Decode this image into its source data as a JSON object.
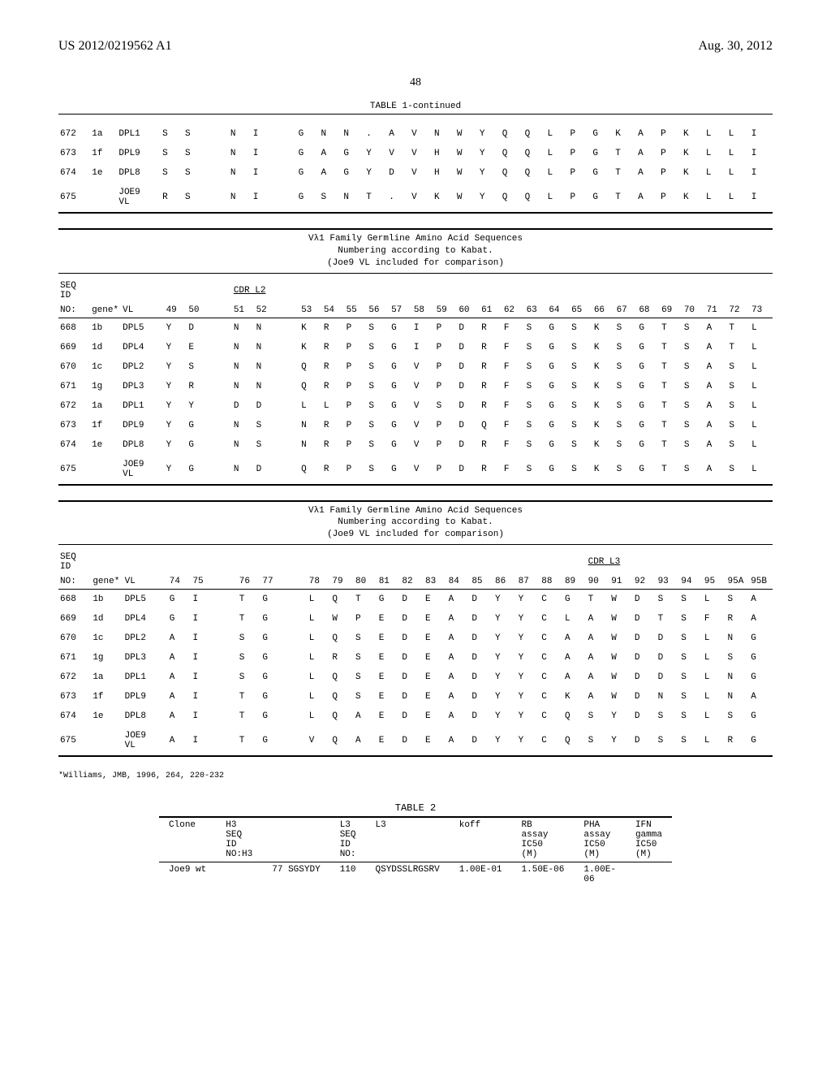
{
  "header": {
    "left": "US 2012/0219562 A1",
    "right": "Aug. 30, 2012"
  },
  "page_number": "48",
  "top_table": {
    "title": "TABLE 1-continued",
    "rows": [
      {
        "seq": "672",
        "gene": "1a",
        "vl": "DPL1",
        "aa": [
          "S",
          "S",
          "",
          "N",
          "I",
          "",
          "G",
          "N",
          "N",
          ".",
          "A",
          "V",
          "N",
          "W",
          "Y",
          "Q",
          "Q",
          "L",
          "P",
          "G",
          "K",
          "A",
          "P",
          "K",
          "L",
          "L",
          "I"
        ]
      },
      {
        "seq": "673",
        "gene": "1f",
        "vl": "DPL9",
        "aa": [
          "S",
          "S",
          "",
          "N",
          "I",
          "",
          "G",
          "A",
          "G",
          "Y",
          "V",
          "V",
          "H",
          "W",
          "Y",
          "Q",
          "Q",
          "L",
          "P",
          "G",
          "T",
          "A",
          "P",
          "K",
          "L",
          "L",
          "I"
        ]
      },
      {
        "seq": "674",
        "gene": "1e",
        "vl": "DPL8",
        "aa": [
          "S",
          "S",
          "",
          "N",
          "I",
          "",
          "G",
          "A",
          "G",
          "Y",
          "D",
          "V",
          "H",
          "W",
          "Y",
          "Q",
          "Q",
          "L",
          "P",
          "G",
          "T",
          "A",
          "P",
          "K",
          "L",
          "L",
          "I"
        ]
      },
      {
        "seq": "675",
        "gene": "",
        "vl": "JOE9 VL",
        "aa": [
          "R",
          "S",
          "",
          "N",
          "I",
          "",
          "G",
          "S",
          "N",
          "T",
          ".",
          "V",
          "K",
          "W",
          "Y",
          "Q",
          "Q",
          "L",
          "P",
          "G",
          "T",
          "A",
          "P",
          "K",
          "L",
          "L",
          "I"
        ]
      }
    ]
  },
  "mid_caption": "Vλ1 Family Germline Amino Acid Sequences\nNumbering according to Kabat.\n(Joe9 VL included for comparison)",
  "mid_table": {
    "cdr_label": "CDR L2",
    "positions": [
      "49",
      "50",
      "",
      "51",
      "52",
      "",
      "53",
      "54",
      "55",
      "56",
      "57",
      "58",
      "59",
      "60",
      "61",
      "62",
      "63",
      "64",
      "65",
      "66",
      "67",
      "68",
      "69",
      "70",
      "71",
      "72",
      "73"
    ],
    "header_left": [
      "SEQ",
      "ID",
      "",
      "NO:",
      "gene*",
      "VL"
    ],
    "rows": [
      {
        "seq": "668",
        "gene": "1b",
        "vl": "DPL5",
        "aa": [
          "Y",
          "D",
          "",
          "N",
          "N",
          "",
          "K",
          "R",
          "P",
          "S",
          "G",
          "I",
          "P",
          "D",
          "R",
          "F",
          "S",
          "G",
          "S",
          "K",
          "S",
          "G",
          "T",
          "S",
          "A",
          "T",
          "L"
        ]
      },
      {
        "seq": "669",
        "gene": "1d",
        "vl": "DPL4",
        "aa": [
          "Y",
          "E",
          "",
          "N",
          "N",
          "",
          "K",
          "R",
          "P",
          "S",
          "G",
          "I",
          "P",
          "D",
          "R",
          "F",
          "S",
          "G",
          "S",
          "K",
          "S",
          "G",
          "T",
          "S",
          "A",
          "T",
          "L"
        ]
      },
      {
        "seq": "670",
        "gene": "1c",
        "vl": "DPL2",
        "aa": [
          "Y",
          "S",
          "",
          "N",
          "N",
          "",
          "Q",
          "R",
          "P",
          "S",
          "G",
          "V",
          "P",
          "D",
          "R",
          "F",
          "S",
          "G",
          "S",
          "K",
          "S",
          "G",
          "T",
          "S",
          "A",
          "S",
          "L"
        ]
      },
      {
        "seq": "671",
        "gene": "1g",
        "vl": "DPL3",
        "aa": [
          "Y",
          "R",
          "",
          "N",
          "N",
          "",
          "Q",
          "R",
          "P",
          "S",
          "G",
          "V",
          "P",
          "D",
          "R",
          "F",
          "S",
          "G",
          "S",
          "K",
          "S",
          "G",
          "T",
          "S",
          "A",
          "S",
          "L"
        ]
      },
      {
        "seq": "672",
        "gene": "1a",
        "vl": "DPL1",
        "aa": [
          "Y",
          "Y",
          "",
          "D",
          "D",
          "",
          "L",
          "L",
          "P",
          "S",
          "G",
          "V",
          "S",
          "D",
          "R",
          "F",
          "S",
          "G",
          "S",
          "K",
          "S",
          "G",
          "T",
          "S",
          "A",
          "S",
          "L"
        ]
      },
      {
        "seq": "673",
        "gene": "1f",
        "vl": "DPL9",
        "aa": [
          "Y",
          "G",
          "",
          "N",
          "S",
          "",
          "N",
          "R",
          "P",
          "S",
          "G",
          "V",
          "P",
          "D",
          "Q",
          "F",
          "S",
          "G",
          "S",
          "K",
          "S",
          "G",
          "T",
          "S",
          "A",
          "S",
          "L"
        ]
      },
      {
        "seq": "674",
        "gene": "1e",
        "vl": "DPL8",
        "aa": [
          "Y",
          "G",
          "",
          "N",
          "S",
          "",
          "N",
          "R",
          "P",
          "S",
          "G",
          "V",
          "P",
          "D",
          "R",
          "F",
          "S",
          "G",
          "S",
          "K",
          "S",
          "G",
          "T",
          "S",
          "A",
          "S",
          "L"
        ]
      },
      {
        "seq": "675",
        "gene": "",
        "vl": "JOE9 VL",
        "aa": [
          "Y",
          "G",
          "",
          "N",
          "D",
          "",
          "Q",
          "R",
          "P",
          "S",
          "G",
          "V",
          "P",
          "D",
          "R",
          "F",
          "S",
          "G",
          "S",
          "K",
          "S",
          "G",
          "T",
          "S",
          "A",
          "S",
          "L"
        ]
      }
    ]
  },
  "bot_table": {
    "cdr_label": "CDR L3",
    "positions": [
      "74",
      "75",
      "",
      "76",
      "77",
      "",
      "78",
      "79",
      "80",
      "81",
      "82",
      "83",
      "84",
      "85",
      "86",
      "87",
      "88",
      "89",
      "90",
      "91",
      "92",
      "93",
      "94",
      "95",
      "95A",
      "95B"
    ],
    "rows": [
      {
        "seq": "668",
        "gene": "1b",
        "vl": "DPL5",
        "aa": [
          "G",
          "I",
          "",
          "T",
          "G",
          "",
          "L",
          "Q",
          "T",
          "G",
          "D",
          "E",
          "A",
          "D",
          "Y",
          "Y",
          "C",
          "G",
          "T",
          "W",
          "D",
          "S",
          "S",
          "L",
          "S",
          "A"
        ]
      },
      {
        "seq": "669",
        "gene": "1d",
        "vl": "DPL4",
        "aa": [
          "G",
          "I",
          "",
          "T",
          "G",
          "",
          "L",
          "W",
          "P",
          "E",
          "D",
          "E",
          "A",
          "D",
          "Y",
          "Y",
          "C",
          "L",
          "A",
          "W",
          "D",
          "T",
          "S",
          "F",
          "R",
          "A"
        ]
      },
      {
        "seq": "670",
        "gene": "1c",
        "vl": "DPL2",
        "aa": [
          "A",
          "I",
          "",
          "S",
          "G",
          "",
          "L",
          "Q",
          "S",
          "E",
          "D",
          "E",
          "A",
          "D",
          "Y",
          "Y",
          "C",
          "A",
          "A",
          "W",
          "D",
          "D",
          "S",
          "L",
          "N",
          "G"
        ]
      },
      {
        "seq": "671",
        "gene": "1g",
        "vl": "DPL3",
        "aa": [
          "A",
          "I",
          "",
          "S",
          "G",
          "",
          "L",
          "R",
          "S",
          "E",
          "D",
          "E",
          "A",
          "D",
          "Y",
          "Y",
          "C",
          "A",
          "A",
          "W",
          "D",
          "D",
          "S",
          "L",
          "S",
          "G"
        ]
      },
      {
        "seq": "672",
        "gene": "1a",
        "vl": "DPL1",
        "aa": [
          "A",
          "I",
          "",
          "S",
          "G",
          "",
          "L",
          "Q",
          "S",
          "E",
          "D",
          "E",
          "A",
          "D",
          "Y",
          "Y",
          "C",
          "A",
          "A",
          "W",
          "D",
          "D",
          "S",
          "L",
          "N",
          "G"
        ]
      },
      {
        "seq": "673",
        "gene": "1f",
        "vl": "DPL9",
        "aa": [
          "A",
          "I",
          "",
          "T",
          "G",
          "",
          "L",
          "Q",
          "S",
          "E",
          "D",
          "E",
          "A",
          "D",
          "Y",
          "Y",
          "C",
          "K",
          "A",
          "W",
          "D",
          "N",
          "S",
          "L",
          "N",
          "A"
        ]
      },
      {
        "seq": "674",
        "gene": "1e",
        "vl": "DPL8",
        "aa": [
          "A",
          "I",
          "",
          "T",
          "G",
          "",
          "L",
          "Q",
          "A",
          "E",
          "D",
          "E",
          "A",
          "D",
          "Y",
          "Y",
          "C",
          "Q",
          "S",
          "Y",
          "D",
          "S",
          "S",
          "L",
          "S",
          "G"
        ]
      },
      {
        "seq": "675",
        "gene": "",
        "vl": "JOE9 VL",
        "aa": [
          "A",
          "I",
          "",
          "T",
          "G",
          "",
          "V",
          "Q",
          "A",
          "E",
          "D",
          "E",
          "A",
          "D",
          "Y",
          "Y",
          "C",
          "Q",
          "S",
          "Y",
          "D",
          "S",
          "S",
          "L",
          "R",
          "G"
        ]
      }
    ]
  },
  "footnote": "*Williams, JMB, 1996, 264, 220-232",
  "table2": {
    "title": "TABLE 2",
    "columns": [
      "Clone",
      "H3\nSEQ\nID\nNO:H3",
      "",
      "L3\nSEQ\nID\nNO:",
      "L3",
      "koff",
      "RB\nassay\nIC50\n(M)",
      "PHA\nassay\nIC50\n(M)",
      "IFN\ngamma\nIC50\n(M)"
    ],
    "rows": [
      [
        "Joe9 wt",
        "",
        "77 SGSYDY",
        "110",
        "QSYDSSLRGSRV",
        "1.00E-01",
        "1.50E-06",
        "1.00E-\n06",
        ""
      ]
    ]
  }
}
